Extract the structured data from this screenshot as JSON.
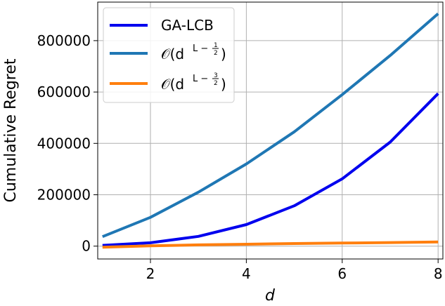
{
  "chart_data": {
    "type": "line",
    "xlabel": "d",
    "ylabel": "Cumulative Regret",
    "xlim": [
      0.9,
      8.1
    ],
    "ylim": [
      -50000,
      950000
    ],
    "xticks": [
      2,
      4,
      6,
      8
    ],
    "xtick_labels": [
      "2",
      "4",
      "6",
      "8"
    ],
    "yticks": [
      0,
      200000,
      400000,
      600000,
      800000
    ],
    "ytick_labels": [
      "0",
      "200000",
      "400000",
      "600000",
      "800000"
    ],
    "grid": true,
    "legend_position": "top-left",
    "x": [
      1,
      2,
      3,
      4,
      5,
      6,
      7,
      8
    ],
    "series": [
      {
        "name": "GA-LCB",
        "color": "#0000ee",
        "values": [
          3000,
          13000,
          38000,
          84000,
          157000,
          262000,
          405000,
          594000
        ]
      },
      {
        "name": "𝒪(d^{L-1/2})",
        "color": "#1f77b4",
        "values": [
          37000,
          112000,
          210000,
          320000,
          445000,
          590000,
          742000,
          905000
        ]
      },
      {
        "name": "𝒪(d^{L-3/2})",
        "color": "#ff7f0e",
        "values": [
          -4000,
          1000,
          5000,
          7500,
          10000,
          12000,
          14000,
          16000
        ]
      }
    ]
  },
  "legend": {
    "entries": [
      {
        "base": "GA-LCB"
      },
      {
        "base": "𝒪(d",
        "exp": "L −",
        "num": "1",
        "den": "2",
        "close": ")"
      },
      {
        "base": "𝒪(d",
        "exp": "L −",
        "num": "3",
        "den": "2",
        "close": ")"
      }
    ]
  }
}
